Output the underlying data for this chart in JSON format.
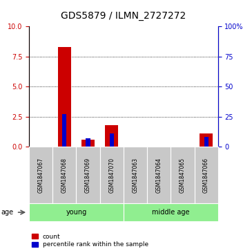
{
  "title": "GDS5879 / ILMN_2727272",
  "samples": [
    "GSM1847067",
    "GSM1847068",
    "GSM1847069",
    "GSM1847070",
    "GSM1847063",
    "GSM1847064",
    "GSM1847065",
    "GSM1847066"
  ],
  "count_values": [
    0.0,
    8.3,
    0.6,
    1.8,
    0.0,
    0.0,
    0.0,
    1.1
  ],
  "percentile_values": [
    0.0,
    27.0,
    7.0,
    11.0,
    0.0,
    0.0,
    0.0,
    8.0
  ],
  "groups": [
    {
      "label": "young",
      "start": 0,
      "end": 4,
      "color": "#90ee90"
    },
    {
      "label": "middle age",
      "start": 4,
      "end": 8,
      "color": "#90ee90"
    }
  ],
  "left_ylim": [
    0,
    10
  ],
  "right_ylim": [
    0,
    100
  ],
  "left_yticks": [
    0,
    2.5,
    5,
    7.5,
    10
  ],
  "right_yticks": [
    0,
    25,
    50,
    75,
    100
  ],
  "right_yticklabels": [
    "0",
    "25",
    "50",
    "75",
    "100%"
  ],
  "count_color": "#cc0000",
  "percentile_color": "#0000cc",
  "red_bar_width": 0.55,
  "blue_bar_width": 0.18,
  "sample_box_color": "#c8c8c8",
  "age_label": "age",
  "legend_count": "count",
  "legend_percentile": "percentile rank within the sample",
  "title_fontsize": 10,
  "tick_fontsize": 7,
  "sample_fontsize": 5.5,
  "group_fontsize": 7,
  "legend_fontsize": 6.5
}
